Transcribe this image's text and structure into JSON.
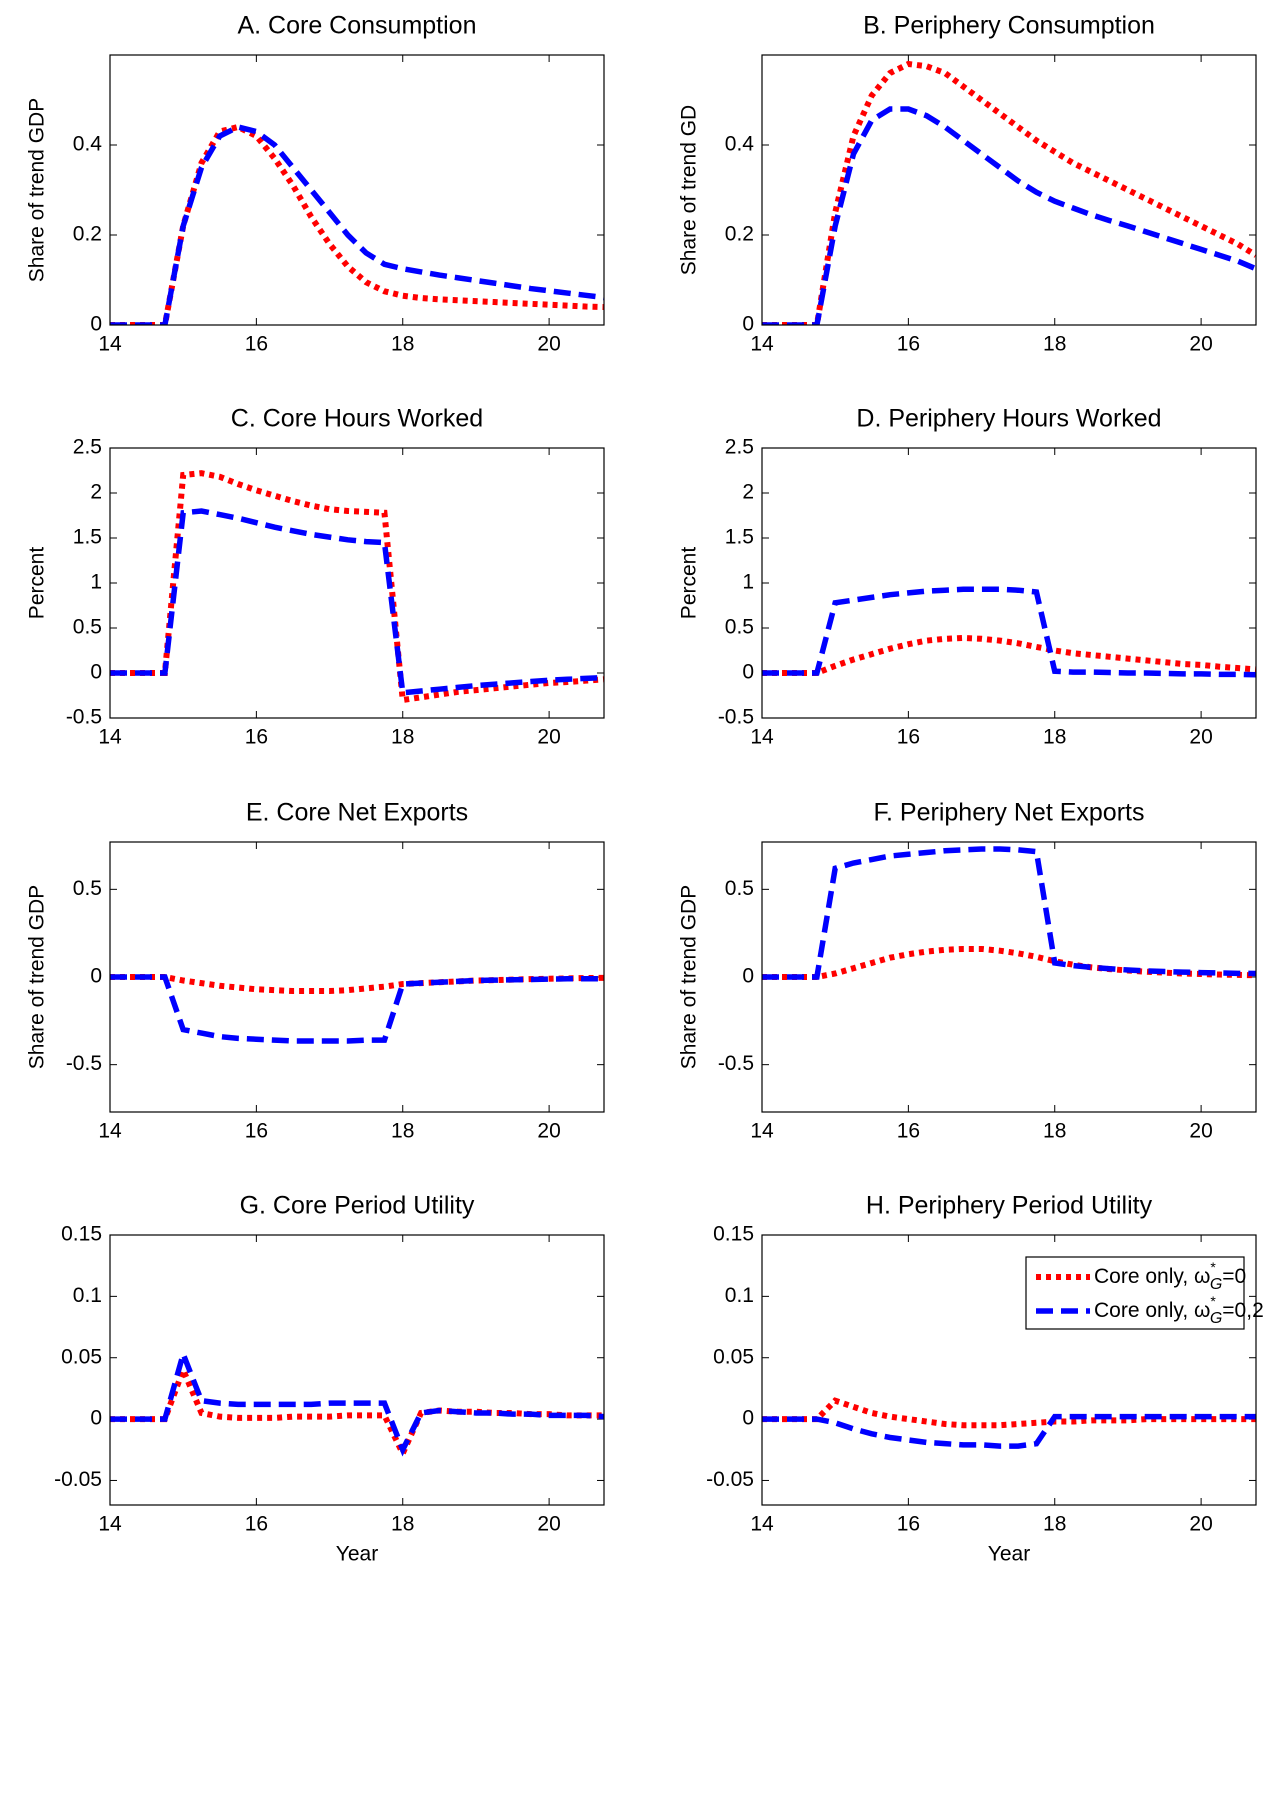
{
  "chart_data": [
    {
      "type": "line",
      "title": "A. Core Consumption",
      "ylabel": "Share of trend GDP",
      "x": [
        14,
        14.25,
        14.5,
        14.75,
        15,
        15.25,
        15.5,
        15.75,
        16,
        16.25,
        16.5,
        16.75,
        17,
        17.25,
        17.5,
        17.75,
        18,
        18.25,
        18.5,
        18.75,
        19,
        19.25,
        19.5,
        19.75,
        20,
        20.25,
        20.5,
        20.75
      ],
      "xlim": [
        14,
        20.75
      ],
      "xticks": [
        14,
        16,
        18,
        20
      ],
      "ylim": [
        0,
        0.6
      ],
      "yticks": [
        0,
        0.2,
        0.4
      ],
      "series": [
        {
          "color": "#ff0000",
          "linestyle": "dotted",
          "values": [
            0,
            0,
            0,
            0,
            0.22,
            0.36,
            0.43,
            0.44,
            0.42,
            0.37,
            0.31,
            0.24,
            0.18,
            0.13,
            0.095,
            0.075,
            0.065,
            0.06,
            0.057,
            0.055,
            0.053,
            0.051,
            0.049,
            0.047,
            0.045,
            0.043,
            0.041,
            0.04
          ]
        },
        {
          "color": "#0000ff",
          "linestyle": "dashed",
          "values": [
            0,
            0,
            0,
            0,
            0.22,
            0.35,
            0.42,
            0.44,
            0.43,
            0.4,
            0.35,
            0.3,
            0.25,
            0.2,
            0.16,
            0.135,
            0.125,
            0.118,
            0.111,
            0.105,
            0.099,
            0.093,
            0.087,
            0.081,
            0.076,
            0.071,
            0.066,
            0.061
          ]
        }
      ]
    },
    {
      "type": "line",
      "title": "B. Periphery Consumption",
      "ylabel": "Share of trend GD",
      "x": [
        14,
        14.25,
        14.5,
        14.75,
        15,
        15.25,
        15.5,
        15.75,
        16,
        16.25,
        16.5,
        16.75,
        17,
        17.25,
        17.5,
        17.75,
        18,
        18.25,
        18.5,
        18.75,
        19,
        19.25,
        19.5,
        19.75,
        20,
        20.25,
        20.5,
        20.75
      ],
      "xlim": [
        14,
        20.75
      ],
      "xticks": [
        14,
        16,
        18,
        20
      ],
      "ylim": [
        0,
        0.6
      ],
      "yticks": [
        0,
        0.2,
        0.4
      ],
      "series": [
        {
          "color": "#ff0000",
          "linestyle": "dotted",
          "values": [
            0,
            0,
            0,
            0,
            0.25,
            0.42,
            0.51,
            0.56,
            0.58,
            0.575,
            0.56,
            0.53,
            0.5,
            0.47,
            0.44,
            0.41,
            0.385,
            0.36,
            0.34,
            0.32,
            0.3,
            0.28,
            0.26,
            0.24,
            0.22,
            0.2,
            0.18,
            0.155
          ]
        },
        {
          "color": "#0000ff",
          "linestyle": "dashed",
          "values": [
            0,
            0,
            0,
            0,
            0.22,
            0.38,
            0.455,
            0.48,
            0.48,
            0.465,
            0.44,
            0.41,
            0.38,
            0.35,
            0.32,
            0.295,
            0.275,
            0.26,
            0.245,
            0.232,
            0.22,
            0.207,
            0.194,
            0.181,
            0.168,
            0.155,
            0.142,
            0.125
          ]
        }
      ]
    },
    {
      "type": "line",
      "title": "C. Core Hours Worked",
      "ylabel": "Percent",
      "x": [
        14,
        14.25,
        14.5,
        14.75,
        15,
        15.25,
        15.5,
        15.75,
        16,
        16.25,
        16.5,
        16.75,
        17,
        17.25,
        17.5,
        17.75,
        18,
        18.25,
        18.5,
        18.75,
        19,
        19.25,
        19.5,
        19.75,
        20,
        20.25,
        20.5,
        20.75
      ],
      "xlim": [
        14,
        20.75
      ],
      "xticks": [
        14,
        16,
        18,
        20
      ],
      "ylim": [
        -0.5,
        2.5
      ],
      "yticks": [
        -0.5,
        0,
        0.5,
        1,
        1.5,
        2,
        2.5
      ],
      "series": [
        {
          "color": "#ff0000",
          "linestyle": "dotted",
          "values": [
            0,
            0,
            0,
            0,
            2.2,
            2.22,
            2.18,
            2.1,
            2.03,
            1.97,
            1.91,
            1.86,
            1.82,
            1.8,
            1.79,
            1.78,
            -0.3,
            -0.27,
            -0.24,
            -0.21,
            -0.19,
            -0.17,
            -0.15,
            -0.13,
            -0.11,
            -0.1,
            -0.085,
            -0.07
          ]
        },
        {
          "color": "#0000ff",
          "linestyle": "dashed",
          "values": [
            0,
            0,
            0,
            0,
            1.78,
            1.8,
            1.76,
            1.72,
            1.67,
            1.62,
            1.58,
            1.54,
            1.51,
            1.48,
            1.46,
            1.45,
            -0.22,
            -0.2,
            -0.18,
            -0.16,
            -0.14,
            -0.125,
            -0.11,
            -0.095,
            -0.08,
            -0.07,
            -0.06,
            -0.05
          ]
        }
      ]
    },
    {
      "type": "line",
      "title": "D. Periphery Hours Worked",
      "ylabel": "Percent",
      "x": [
        14,
        14.25,
        14.5,
        14.75,
        15,
        15.25,
        15.5,
        15.75,
        16,
        16.25,
        16.5,
        16.75,
        17,
        17.25,
        17.5,
        17.75,
        18,
        18.25,
        18.5,
        18.75,
        19,
        19.25,
        19.5,
        19.75,
        20,
        20.25,
        20.5,
        20.75
      ],
      "xlim": [
        14,
        20.75
      ],
      "xticks": [
        14,
        16,
        18,
        20
      ],
      "ylim": [
        -0.5,
        2.5
      ],
      "yticks": [
        -0.5,
        0,
        0.5,
        1,
        1.5,
        2,
        2.5
      ],
      "series": [
        {
          "color": "#ff0000",
          "linestyle": "dotted",
          "values": [
            0,
            0,
            0,
            0,
            0.08,
            0.15,
            0.21,
            0.27,
            0.32,
            0.36,
            0.38,
            0.39,
            0.38,
            0.36,
            0.33,
            0.29,
            0.25,
            0.22,
            0.2,
            0.18,
            0.16,
            0.14,
            0.12,
            0.1,
            0.09,
            0.07,
            0.055,
            0.04
          ]
        },
        {
          "color": "#0000ff",
          "linestyle": "dashed",
          "values": [
            0,
            0,
            0,
            0,
            0.78,
            0.81,
            0.84,
            0.87,
            0.89,
            0.91,
            0.92,
            0.93,
            0.93,
            0.93,
            0.92,
            0.9,
            0.02,
            0.01,
            0.01,
            0.005,
            0,
            0,
            -0.005,
            -0.01,
            -0.01,
            -0.015,
            -0.015,
            -0.02
          ]
        }
      ]
    },
    {
      "type": "line",
      "title": "E. Core Net Exports",
      "ylabel": "Share of trend GDP",
      "x": [
        14,
        14.25,
        14.5,
        14.75,
        15,
        15.25,
        15.5,
        15.75,
        16,
        16.25,
        16.5,
        16.75,
        17,
        17.25,
        17.5,
        17.75,
        18,
        18.25,
        18.5,
        18.75,
        19,
        19.25,
        19.5,
        19.75,
        20,
        20.25,
        20.5,
        20.75
      ],
      "xlim": [
        14,
        20.75
      ],
      "xticks": [
        14,
        16,
        18,
        20
      ],
      "ylim": [
        -0.77,
        0.77
      ],
      "yticks": [
        -0.5,
        0,
        0.5
      ],
      "series": [
        {
          "color": "#ff0000",
          "linestyle": "dotted",
          "values": [
            0,
            0,
            0,
            0,
            -0.02,
            -0.035,
            -0.05,
            -0.06,
            -0.07,
            -0.075,
            -0.08,
            -0.08,
            -0.08,
            -0.075,
            -0.065,
            -0.055,
            -0.04,
            -0.035,
            -0.03,
            -0.025,
            -0.02,
            -0.018,
            -0.015,
            -0.012,
            -0.01,
            -0.008,
            -0.006,
            -0.005
          ]
        },
        {
          "color": "#0000ff",
          "linestyle": "dashed",
          "values": [
            0,
            0,
            0,
            0,
            -0.3,
            -0.32,
            -0.34,
            -0.35,
            -0.355,
            -0.36,
            -0.365,
            -0.365,
            -0.365,
            -0.365,
            -0.36,
            -0.36,
            -0.04,
            -0.035,
            -0.03,
            -0.025,
            -0.02,
            -0.018,
            -0.016,
            -0.014,
            -0.012,
            -0.01,
            -0.01,
            -0.01
          ]
        }
      ]
    },
    {
      "type": "line",
      "title": "F. Periphery Net Exports",
      "ylabel": "Share of trend GDP",
      "x": [
        14,
        14.25,
        14.5,
        14.75,
        15,
        15.25,
        15.5,
        15.75,
        16,
        16.25,
        16.5,
        16.75,
        17,
        17.25,
        17.5,
        17.75,
        18,
        18.25,
        18.5,
        18.75,
        19,
        19.25,
        19.5,
        19.75,
        20,
        20.25,
        20.5,
        20.75
      ],
      "xlim": [
        14,
        20.75
      ],
      "xticks": [
        14,
        16,
        18,
        20
      ],
      "ylim": [
        -0.77,
        0.77
      ],
      "yticks": [
        -0.5,
        0,
        0.5
      ],
      "series": [
        {
          "color": "#ff0000",
          "linestyle": "dotted",
          "values": [
            0,
            0,
            0,
            0,
            0.02,
            0.05,
            0.08,
            0.11,
            0.13,
            0.145,
            0.155,
            0.16,
            0.16,
            0.15,
            0.135,
            0.115,
            0.09,
            0.07,
            0.055,
            0.045,
            0.037,
            0.03,
            0.025,
            0.02,
            0.017,
            0.014,
            0.012,
            0.01
          ]
        },
        {
          "color": "#0000ff",
          "linestyle": "dashed",
          "values": [
            0,
            0,
            0,
            0,
            0.62,
            0.65,
            0.67,
            0.69,
            0.7,
            0.71,
            0.72,
            0.725,
            0.73,
            0.73,
            0.725,
            0.715,
            0.08,
            0.065,
            0.055,
            0.047,
            0.04,
            0.035,
            0.031,
            0.028,
            0.025,
            0.023,
            0.021,
            0.02
          ]
        }
      ]
    },
    {
      "type": "line",
      "title": "G. Core Period Utility",
      "xlabel": "Year",
      "x": [
        14,
        14.25,
        14.5,
        14.75,
        15,
        15.25,
        15.5,
        15.75,
        16,
        16.25,
        16.5,
        16.75,
        17,
        17.25,
        17.5,
        17.75,
        18,
        18.25,
        18.5,
        18.75,
        19,
        19.25,
        19.5,
        19.75,
        20,
        20.25,
        20.5,
        20.75
      ],
      "xlim": [
        14,
        20.75
      ],
      "xticks": [
        14,
        16,
        18,
        20
      ],
      "ylim": [
        -0.07,
        0.15
      ],
      "yticks": [
        -0.05,
        0,
        0.05,
        0.1,
        0.15
      ],
      "series": [
        {
          "color": "#ff0000",
          "linestyle": "dotted",
          "values": [
            0,
            0,
            0,
            0,
            0.04,
            0.005,
            0.002,
            0.001,
            0.001,
            0.001,
            0.002,
            0.002,
            0.002,
            0.003,
            0.003,
            0.003,
            -0.028,
            0.005,
            0.007,
            0.006,
            0.006,
            0.005,
            0.005,
            0.004,
            0.004,
            0.003,
            0.003,
            0.003
          ]
        },
        {
          "color": "#0000ff",
          "linestyle": "dashed",
          "values": [
            0,
            0,
            0,
            0,
            0.053,
            0.015,
            0.013,
            0.012,
            0.012,
            0.012,
            0.012,
            0.012,
            0.013,
            0.013,
            0.013,
            0.013,
            -0.025,
            0.005,
            0.007,
            0.006,
            0.005,
            0.005,
            0.004,
            0.004,
            0.003,
            0.003,
            0.003,
            0.002
          ]
        }
      ]
    },
    {
      "type": "line",
      "title": "H. Periphery Period Utility",
      "xlabel": "Year",
      "legend": "upper right",
      "x": [
        14,
        14.25,
        14.5,
        14.75,
        15,
        15.25,
        15.5,
        15.75,
        16,
        16.25,
        16.5,
        16.75,
        17,
        17.25,
        17.5,
        17.75,
        18,
        18.25,
        18.5,
        18.75,
        19,
        19.25,
        19.5,
        19.75,
        20,
        20.25,
        20.5,
        20.75
      ],
      "xlim": [
        14,
        20.75
      ],
      "xticks": [
        14,
        16,
        18,
        20
      ],
      "ylim": [
        -0.07,
        0.15
      ],
      "yticks": [
        -0.05,
        0,
        0.05,
        0.1,
        0.15
      ],
      "series": [
        {
          "name": "Core only, ω*G=0",
          "color": "#ff0000",
          "linestyle": "dotted",
          "values": [
            0,
            0,
            0,
            0,
            0.015,
            0.01,
            0.005,
            0.002,
            0,
            -0.002,
            -0.004,
            -0.005,
            -0.005,
            -0.005,
            -0.004,
            -0.003,
            -0.002,
            -0.002,
            -0.001,
            -0.001,
            -0.001,
            0,
            0,
            0,
            0,
            0,
            0,
            0
          ]
        },
        {
          "name": "Core only, ω*G=0,2",
          "color": "#0000ff",
          "linestyle": "dashed",
          "values": [
            0,
            0,
            0,
            0,
            -0.003,
            -0.008,
            -0.012,
            -0.015,
            -0.017,
            -0.019,
            -0.02,
            -0.021,
            -0.021,
            -0.022,
            -0.022,
            -0.02,
            0.002,
            0.002,
            0.002,
            0.002,
            0.002,
            0.002,
            0.002,
            0.002,
            0.002,
            0.002,
            0.002,
            0.002
          ]
        }
      ]
    }
  ]
}
